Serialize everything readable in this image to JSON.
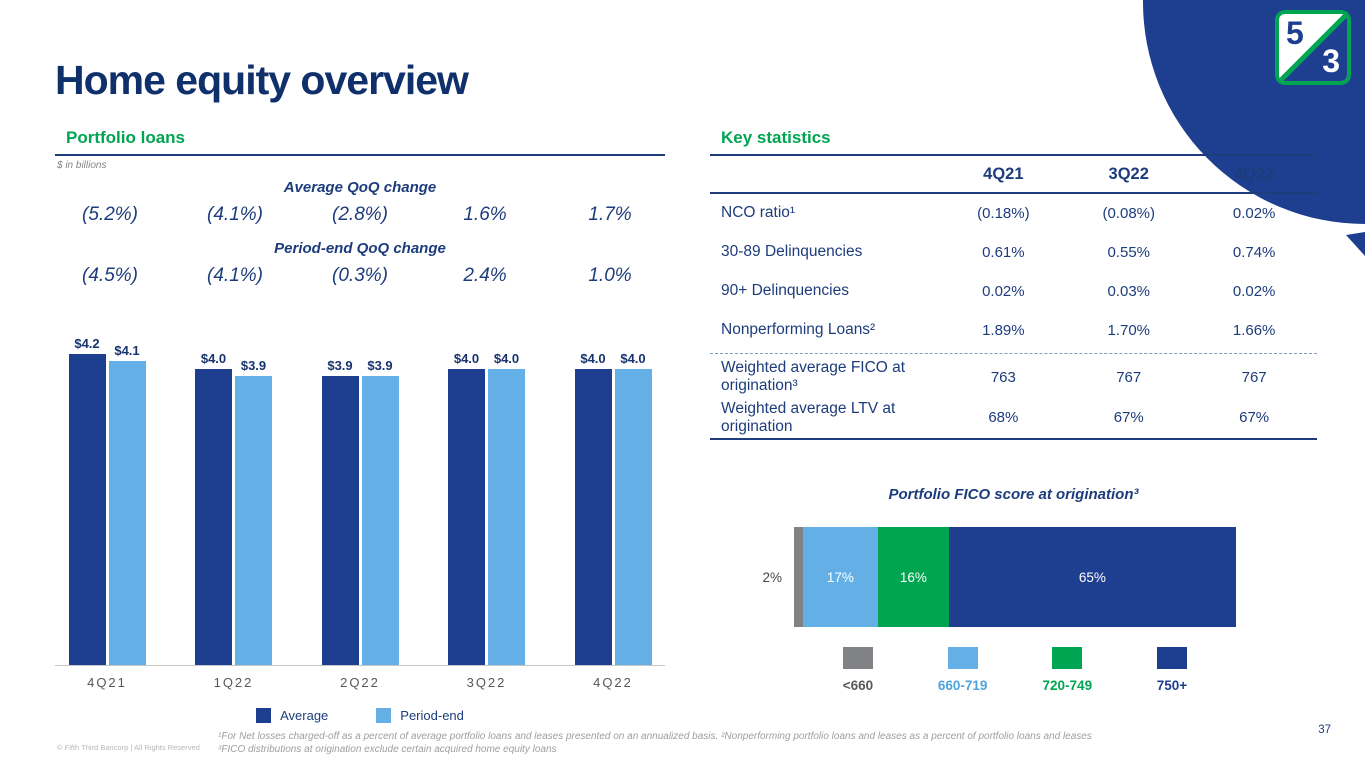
{
  "page": {
    "title": "Home equity overview",
    "page_number": "37",
    "copyright": "© Fifth Third Bancorp | All Rights Reserved",
    "footnotes": [
      "¹For Net losses charged-off as a percent of average portfolio loans and leases presented on an annualized basis. ²Nonperforming portfolio loans and leases as a percent of portfolio loans and leases",
      "³FICO distributions at origination exclude certain acquired home equity loans"
    ]
  },
  "logo": {
    "numerator": "5",
    "denominator": "3"
  },
  "colors": {
    "navy": "#1e3e90",
    "light_blue": "#64b0e6",
    "green": "#00a551",
    "gray": "#808285"
  },
  "portfolio_section": {
    "heading": "Portfolio loans",
    "units": "$ in billions"
  },
  "key_statistics": {
    "heading": "Key statistics",
    "columns": [
      "4Q21",
      "3Q22",
      "4Q22"
    ],
    "rows": [
      {
        "label": "NCO ratio¹",
        "values": [
          "(0.18%)",
          "(0.08%)",
          "0.02%"
        ]
      },
      {
        "label": "30-89 Delinquencies",
        "values": [
          "0.61%",
          "0.55%",
          "0.74%"
        ]
      },
      {
        "label": "90+ Delinquencies",
        "values": [
          "0.02%",
          "0.03%",
          "0.02%"
        ]
      },
      {
        "label": "Nonperforming Loans²",
        "values": [
          "1.89%",
          "1.70%",
          "1.66%"
        ],
        "divider_after": true
      },
      {
        "label": "Weighted average FICO at origination³",
        "values": [
          "763",
          "767",
          "767"
        ]
      },
      {
        "label": "Weighted average LTV at origination",
        "values": [
          "68%",
          "67%",
          "67%"
        ]
      }
    ]
  },
  "chart_data": [
    {
      "type": "bar",
      "title": "Portfolio loans",
      "units": "$ in billions",
      "categories": [
        "4Q21",
        "1Q22",
        "2Q22",
        "3Q22",
        "4Q22"
      ],
      "series": [
        {
          "name": "Average",
          "color": "#1e3e90",
          "values": [
            4.2,
            4.0,
            3.9,
            4.0,
            4.0
          ],
          "labels": [
            "$4.2",
            "$4.0",
            "$3.9",
            "$4.0",
            "$4.0"
          ]
        },
        {
          "name": "Period-end",
          "color": "#64b0e6",
          "values": [
            4.1,
            3.9,
            3.9,
            4.0,
            4.0
          ],
          "labels": [
            "$4.1",
            "$3.9",
            "$3.9",
            "$4.0",
            "$4.0"
          ]
        }
      ],
      "ylim": [
        0,
        4.2
      ],
      "legend_position": "bottom",
      "annotations": {
        "average_qoq": {
          "label": "Average QoQ change",
          "values": [
            "(5.2%)",
            "(4.1%)",
            "(2.8%)",
            "1.6%",
            "1.7%"
          ]
        },
        "period_end_qoq": {
          "label": "Period-end QoQ change",
          "values": [
            "(4.5%)",
            "(4.1%)",
            "(0.3%)",
            "2.4%",
            "1.0%"
          ]
        }
      }
    },
    {
      "type": "bar",
      "subtype": "horizontal-stacked",
      "title": "Portfolio FICO score at origination³",
      "segments": [
        {
          "label": "<660",
          "value": 2,
          "display": "2%",
          "color": "#808285",
          "text_color": "#58595b",
          "label_outside": true
        },
        {
          "label": "660-719",
          "value": 17,
          "display": "17%",
          "color": "#64b0e6",
          "text_color": "#4fa3dd"
        },
        {
          "label": "720-749",
          "value": 16,
          "display": "16%",
          "color": "#00a551",
          "text_color": "#00a551"
        },
        {
          "label": "750+",
          "value": 65,
          "display": "65%",
          "color": "#1e3e90",
          "text_color": "#1e3e90"
        }
      ]
    }
  ]
}
